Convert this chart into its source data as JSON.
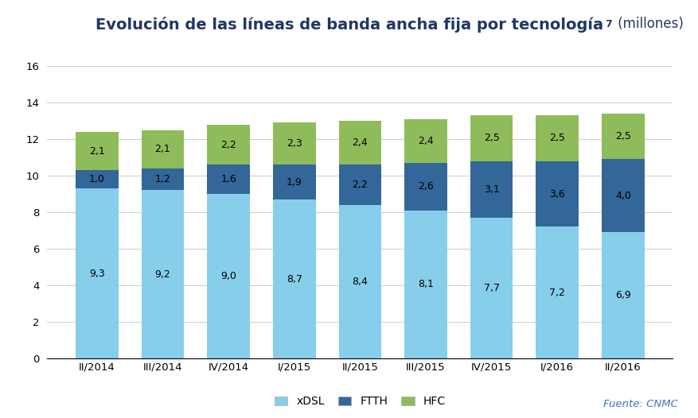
{
  "categories": [
    "II/2014",
    "III/2014",
    "IV/2014",
    "I/2015",
    "II/2015",
    "III/2015",
    "IV/2015",
    "I/2016",
    "II/2016"
  ],
  "xDSL": [
    9.3,
    9.2,
    9.0,
    8.7,
    8.4,
    8.1,
    7.7,
    7.2,
    6.9
  ],
  "FTTH": [
    1.0,
    1.2,
    1.6,
    1.9,
    2.2,
    2.6,
    3.1,
    3.6,
    4.0
  ],
  "HFC": [
    2.1,
    2.1,
    2.2,
    2.3,
    2.4,
    2.4,
    2.5,
    2.5,
    2.5
  ],
  "xDSL_color": "#87CEEB",
  "FTTH_color": "#336699",
  "HFC_color": "#8fbc5a",
  "title_main": "Evolución de las líneas de banda ancha fija por tecnología",
  "title_super": "7",
  "title_suffix": " (millones)",
  "ylim": [
    0,
    16
  ],
  "yticks": [
    0,
    2,
    4,
    6,
    8,
    10,
    12,
    14,
    16
  ],
  "legend_labels": [
    "xDSL",
    "FTTH",
    "HFC"
  ],
  "source_text": "Fuente: CNMC",
  "background_color": "#ffffff",
  "grid_color": "#cccccc",
  "title_color": "#1f3864",
  "source_color": "#4472c4",
  "label_fontsize": 9,
  "bar_width": 0.65
}
